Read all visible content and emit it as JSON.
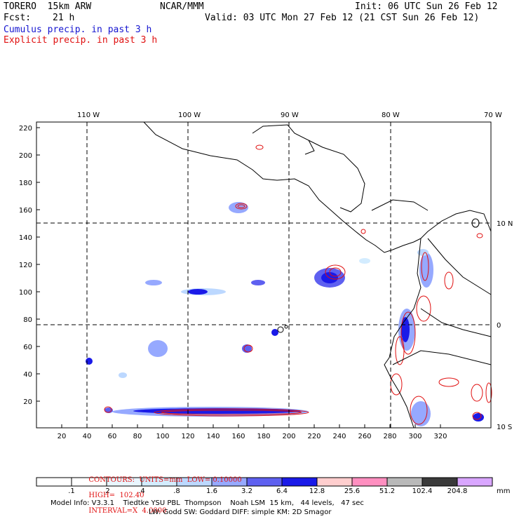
{
  "header": {
    "model": "TORERO  15km ARW",
    "org": "NCAR/MMM",
    "init": "Init: 06 UTC Sun 26 Feb 12",
    "fcst_label": "Fcst:",
    "fcst_value": "21 h",
    "valid": "Valid: 03 UTC Mon 27 Feb 12 (21 CST Sun 26 Feb 12)",
    "field1": "Cumulus precip. in past 3 h",
    "field2": "Explicit precip. in past 3 h"
  },
  "colors": {
    "field1": "#1515d0",
    "field2": "#e01010",
    "coast": "#000000",
    "grid": "#000000"
  },
  "map": {
    "top_longitude_labels": [
      "110 W",
      "100 W",
      "90 W",
      "80 W",
      "70 W"
    ],
    "right_latitude_labels": [
      "10 N",
      "0",
      "10 S"
    ],
    "y_axis_ticks": [
      "220",
      "200",
      "180",
      "160",
      "140",
      "120",
      "100",
      "80",
      "60",
      "40",
      "20"
    ],
    "x_axis_ticks": [
      "20",
      "40",
      "60",
      "80",
      "100",
      "120",
      "140",
      "160",
      "180",
      "200",
      "220",
      "240",
      "260",
      "280",
      "300",
      "320"
    ]
  },
  "contours_note": {
    "units": "CONTOURS:  UNITS=mm  LOW= 0.10000",
    "high": "HIGH=  102.40",
    "interval": "INTERVAL=X  4.0000"
  },
  "colorbar": {
    "unit": "mm",
    "labels": [
      ".1",
      ".2",
      ".4",
      ".8",
      "1.6",
      "3.2",
      "6.4",
      "12.8",
      "25.6",
      "51.2",
      "102.4",
      "204.8"
    ],
    "colors": [
      "#ffffff",
      "#ffffff",
      "#e9f6ff",
      "#d3ecff",
      "#bcd8ff",
      "#96a9ff",
      "#5e60f0",
      "#1a1ae8",
      "#ffcece",
      "#ff8fc0",
      "#b9b9b9",
      "#3a3a3a",
      "#d9a6ff"
    ]
  },
  "footer": {
    "line1": "Model Info: V3.3.1    Tiedtke YSU PBL  Thompson    Noah LSM  15 km,   44 levels,   47 sec",
    "line2": "LW: Godd SW: Goddard DIFF: simple KM: 2D Smagor"
  }
}
